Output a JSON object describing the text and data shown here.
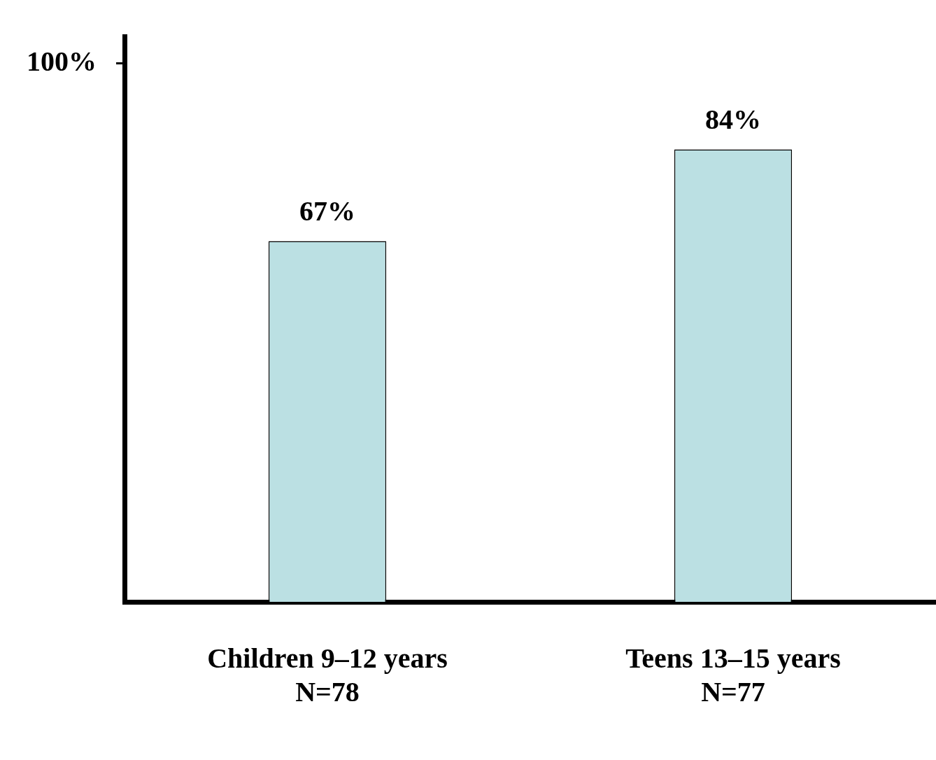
{
  "chart_data": {
    "type": "bar",
    "categories": [
      "Children 9–12 years\nN=78",
      "Teens 13–15 years\nN=77"
    ],
    "values": [
      67,
      84
    ],
    "color": "#bbe0e3",
    "value_labels": [
      "67%",
      "84%"
    ],
    "ylim": [
      0,
      105
    ],
    "yticks": [
      {
        "value": 100,
        "label": "100%"
      }
    ],
    "grid": false,
    "legend": false
  }
}
